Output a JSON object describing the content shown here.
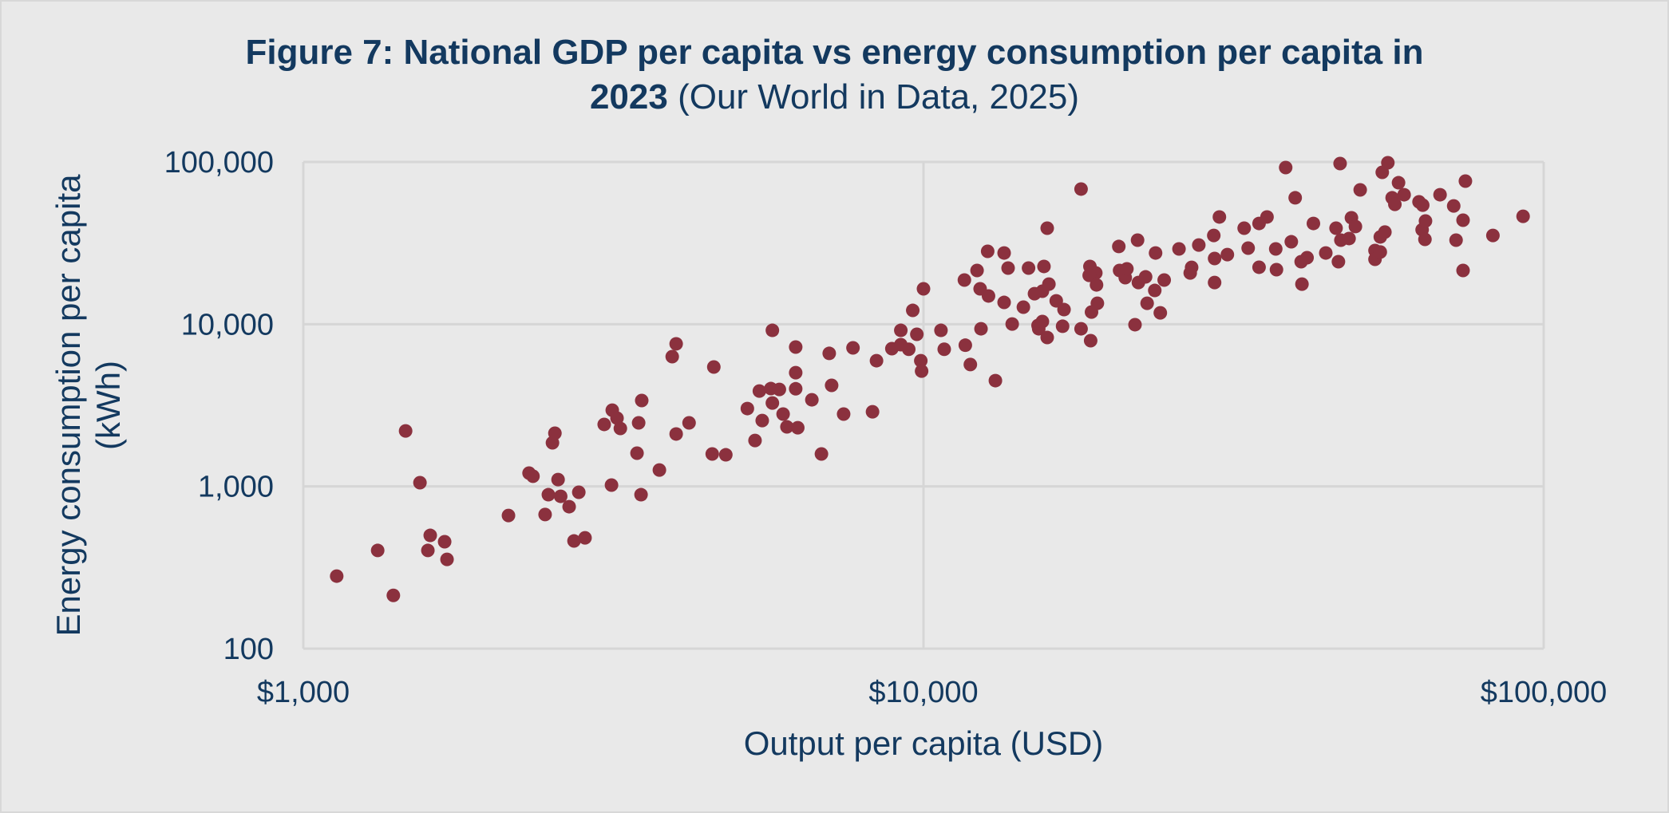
{
  "chart_data": {
    "type": "scatter",
    "title_bold": "Figure 7: National GDP per capita vs energy consumption per capita in 2023",
    "title_normal": "(Our World in Data, 2025)",
    "title_line1": "Figure 7: National GDP per capita vs energy consumption per capita in",
    "title_line2_bold": "2023",
    "xlabel": "Output per capita (USD)",
    "ylabel_line1": "Energy consumption per capita",
    "ylabel_line2": "(kWh)",
    "xscale": "log",
    "yscale": "log",
    "xlim": [
      1000,
      100000
    ],
    "ylim": [
      100,
      100000
    ],
    "x_ticks": [
      1000,
      10000,
      100000
    ],
    "x_tick_labels": [
      "$1,000",
      "$10,000",
      "$100,000"
    ],
    "y_ticks": [
      100,
      1000,
      10000,
      100000
    ],
    "y_tick_labels": [
      "100",
      "1,000",
      "10,000",
      "100,000"
    ],
    "grid": true,
    "legend": "none",
    "marker_color": "#8b313e",
    "points": [
      [
        1132,
        280
      ],
      [
        1318,
        403
      ],
      [
        1397,
        213
      ],
      [
        1462,
        2198
      ],
      [
        1542,
        1054
      ],
      [
        1588,
        403
      ],
      [
        1602,
        499
      ],
      [
        1690,
        456
      ],
      [
        1705,
        355
      ],
      [
        2142,
        662
      ],
      [
        2312,
        1208
      ],
      [
        2346,
        1156
      ],
      [
        2454,
        671
      ],
      [
        2484,
        889
      ],
      [
        2522,
        1858
      ],
      [
        2545,
        2128
      ],
      [
        2575,
        1102
      ],
      [
        2600,
        869
      ],
      [
        2683,
        750
      ],
      [
        2732,
        461
      ],
      [
        2781,
        920
      ],
      [
        2846,
        482
      ],
      [
        3056,
        2411
      ],
      [
        3140,
        1019
      ],
      [
        3149,
        2950
      ],
      [
        3205,
        2636
      ],
      [
        3245,
        2276
      ],
      [
        3452,
        1603
      ],
      [
        3473,
        2466
      ],
      [
        3504,
        889
      ],
      [
        3513,
        3384
      ],
      [
        3751,
        1262
      ],
      [
        3934,
        6310
      ],
      [
        3992,
        7568
      ],
      [
        3992,
        2105
      ],
      [
        4188,
        2466
      ],
      [
        4564,
        1585
      ],
      [
        4591,
        5445
      ],
      [
        4800,
        1566
      ],
      [
        5200,
        3020
      ],
      [
        5350,
        1919
      ],
      [
        5437,
        3873
      ],
      [
        5495,
        2546
      ],
      [
        5674,
        4009
      ],
      [
        5706,
        9162
      ],
      [
        5706,
        3266
      ],
      [
        5856,
        3960
      ],
      [
        5938,
        2793
      ],
      [
        6023,
        2328
      ],
      [
        6222,
        7227
      ],
      [
        6222,
        5024
      ],
      [
        6222,
        3998
      ],
      [
        6270,
        2300
      ],
      [
        6607,
        3420
      ],
      [
        6846,
        1585
      ],
      [
        7047,
        6607
      ],
      [
        7110,
        4198
      ],
      [
        7434,
        2793
      ],
      [
        7697,
        7148
      ],
      [
        8276,
        2884
      ],
      [
        8399,
        5957
      ],
      [
        8892,
        7063
      ],
      [
        9192,
        9162
      ],
      [
        9192,
        7480
      ],
      [
        9467,
        7006
      ],
      [
        9609,
        12162
      ],
      [
        9756,
        8667
      ],
      [
        9900,
        5957
      ],
      [
        9930,
        5140
      ],
      [
        10000,
        16520
      ],
      [
        10670,
        9162
      ],
      [
        10800,
        7006
      ],
      [
        11640,
        18710
      ],
      [
        11680,
        7420
      ],
      [
        11900,
        5640
      ],
      [
        12200,
        21430
      ],
      [
        12340,
        16520
      ],
      [
        12380,
        9370
      ],
      [
        12690,
        28120
      ],
      [
        12730,
        14930
      ],
      [
        13060,
        4489
      ],
      [
        13490,
        27480
      ],
      [
        13490,
        13620
      ],
      [
        13690,
        22180
      ],
      [
        13900,
        10020
      ],
      [
        14490,
        12730
      ],
      [
        14770,
        22180
      ],
      [
        15100,
        15420
      ],
      [
        15300,
        9820
      ],
      [
        15340,
        9370
      ],
      [
        15550,
        15970
      ],
      [
        15550,
        10380
      ],
      [
        15640,
        22700
      ],
      [
        15830,
        39080
      ],
      [
        15830,
        8276
      ],
      [
        15930,
        17660
      ],
      [
        16370,
        13930
      ],
      [
        16760,
        9710
      ],
      [
        16850,
        12300
      ],
      [
        17950,
        68080
      ],
      [
        17950,
        9370
      ],
      [
        18550,
        22700
      ],
      [
        18600,
        7910
      ],
      [
        18960,
        20700
      ],
      [
        18500,
        20000
      ],
      [
        19010,
        17470
      ],
      [
        19070,
        13450
      ],
      [
        18660,
        11880
      ],
      [
        20650,
        30130
      ],
      [
        20710,
        21430
      ],
      [
        21150,
        19360
      ],
      [
        21280,
        21930
      ],
      [
        21930,
        9930
      ],
      [
        22140,
        32960
      ],
      [
        22210,
        18070
      ],
      [
        22810,
        19570
      ],
      [
        22940,
        13450
      ],
      [
        23600,
        16140
      ],
      [
        23670,
        27480
      ],
      [
        24090,
        11750
      ],
      [
        24440,
        18710
      ],
      [
        25820,
        29090
      ],
      [
        26920,
        20700
      ],
      [
        27060,
        22400
      ],
      [
        27790,
        30760
      ],
      [
        29380,
        35240
      ],
      [
        29470,
        25410
      ],
      [
        29470,
        18070
      ],
      [
        30000,
        45810
      ],
      [
        30900,
        26850
      ],
      [
        32890,
        39080
      ],
      [
        33380,
        29440
      ],
      [
        34760,
        41780
      ],
      [
        35800,
        45810
      ],
      [
        34760,
        22440
      ],
      [
        36980,
        29090
      ],
      [
        37080,
        21680
      ],
      [
        38370,
        92380
      ],
      [
        39180,
        32210
      ],
      [
        39750,
        60120
      ],
      [
        40640,
        24270
      ],
      [
        40760,
        17660
      ],
      [
        41540,
        25700
      ],
      [
        42530,
        41780
      ],
      [
        44530,
        27480
      ],
      [
        46260,
        39080
      ],
      [
        46670,
        24270
      ],
      [
        46960,
        97770
      ],
      [
        47100,
        32960
      ],
      [
        48550,
        33740
      ],
      [
        48980,
        45290
      ],
      [
        49710,
        39990
      ],
      [
        50600,
        67300
      ],
      [
        53460,
        28440
      ],
      [
        53460,
        25120
      ],
      [
        54520,
        27850
      ],
      [
        54520,
        34510
      ],
      [
        55460,
        36980
      ],
      [
        54920,
        86300
      ],
      [
        56070,
        98880
      ],
      [
        56970,
        60120
      ],
      [
        57550,
        54800
      ],
      [
        58340,
        74450
      ],
      [
        59560,
        62810
      ],
      [
        62950,
        56750
      ],
      [
        63820,
        54190
      ],
      [
        63680,
        38200
      ],
      [
        64480,
        43250
      ],
      [
        64350,
        33350
      ],
      [
        68060,
        62810
      ],
      [
        71600,
        53560
      ],
      [
        72230,
        32960
      ],
      [
        74130,
        43740
      ],
      [
        74780,
        76210
      ],
      [
        74130,
        21430
      ],
      [
        82820,
        35240
      ],
      [
        92640,
        46230
      ]
    ]
  }
}
